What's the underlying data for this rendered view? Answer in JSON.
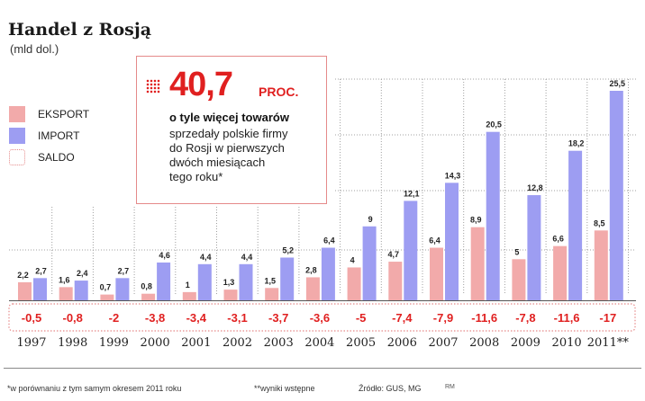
{
  "title": "Handel z Rosją",
  "subtitle": "(mld dol.)",
  "legend": {
    "export": "EKSPORT",
    "import": "IMPORT",
    "saldo": "SALDO"
  },
  "colors": {
    "export": "#f2aaaa",
    "import": "#9d9df2",
    "saldo_text": "#e02020",
    "saldo_border": "#e58a8a",
    "grid": "#a0a0a0"
  },
  "callout": {
    "big_value": "40,7",
    "unit": "PROC.",
    "bold_line": "o tyle więcej towarów",
    "text": "sprzedały polskie firmy\ndo Rosji w pierwszych\ndwóch miesiącach\ntego roku*",
    "icon": "dot-grid-icon"
  },
  "chart_data": {
    "type": "bar",
    "categories": [
      "1997",
      "1998",
      "1999",
      "2000",
      "2001",
      "2002",
      "2003",
      "2004",
      "2005",
      "2006",
      "2007",
      "2008",
      "2009",
      "2010",
      "2011**"
    ],
    "series": [
      {
        "name": "EKSPORT",
        "values": [
          2.2,
          1.6,
          0.7,
          0.8,
          1,
          1.3,
          1.5,
          2.8,
          4,
          4.7,
          6.4,
          8.9,
          5,
          6.6,
          8.5
        ],
        "labels": [
          "2,2",
          "1,6",
          "0,7",
          "0,8",
          "1",
          "1,3",
          "1,5",
          "2,8",
          "4",
          "4,7",
          "6,4",
          "8,9",
          "5",
          "6,6",
          "8,5"
        ]
      },
      {
        "name": "IMPORT",
        "values": [
          2.7,
          2.4,
          2.7,
          4.6,
          4.4,
          4.4,
          5.2,
          6.4,
          9,
          12.1,
          14.3,
          20.5,
          12.8,
          18.2,
          25.5
        ],
        "labels": [
          "2,7",
          "2,4",
          "2,7",
          "4,6",
          "4,4",
          "4,4",
          "5,2",
          "6,4",
          "9",
          "12,1",
          "14,3",
          "20,5",
          "12,8",
          "18,2",
          "25,5"
        ]
      },
      {
        "name": "SALDO",
        "values": [
          -0.5,
          -0.8,
          -2,
          -3.8,
          -3.4,
          -3.1,
          -3.7,
          -3.6,
          -5,
          -7.4,
          -7.9,
          -11.6,
          -7.8,
          -11.6,
          -17
        ],
        "labels": [
          "-0,5",
          "-0,8",
          "-2",
          "-3,8",
          "-3,4",
          "-3,1",
          "-3,7",
          "-3,6",
          "-5",
          "-7,4",
          "-7,9",
          "-11,6",
          "-7,8",
          "-11,6",
          "-17"
        ]
      }
    ],
    "ylim": [
      0,
      26
    ],
    "grid": true,
    "legend_position": "left"
  },
  "footer": {
    "note1": "*w porównaniu z tym samym okresem 2011 roku",
    "note2": "**wyniki wstępne",
    "source": "Źródło: GUS, MG",
    "author": "RM"
  }
}
